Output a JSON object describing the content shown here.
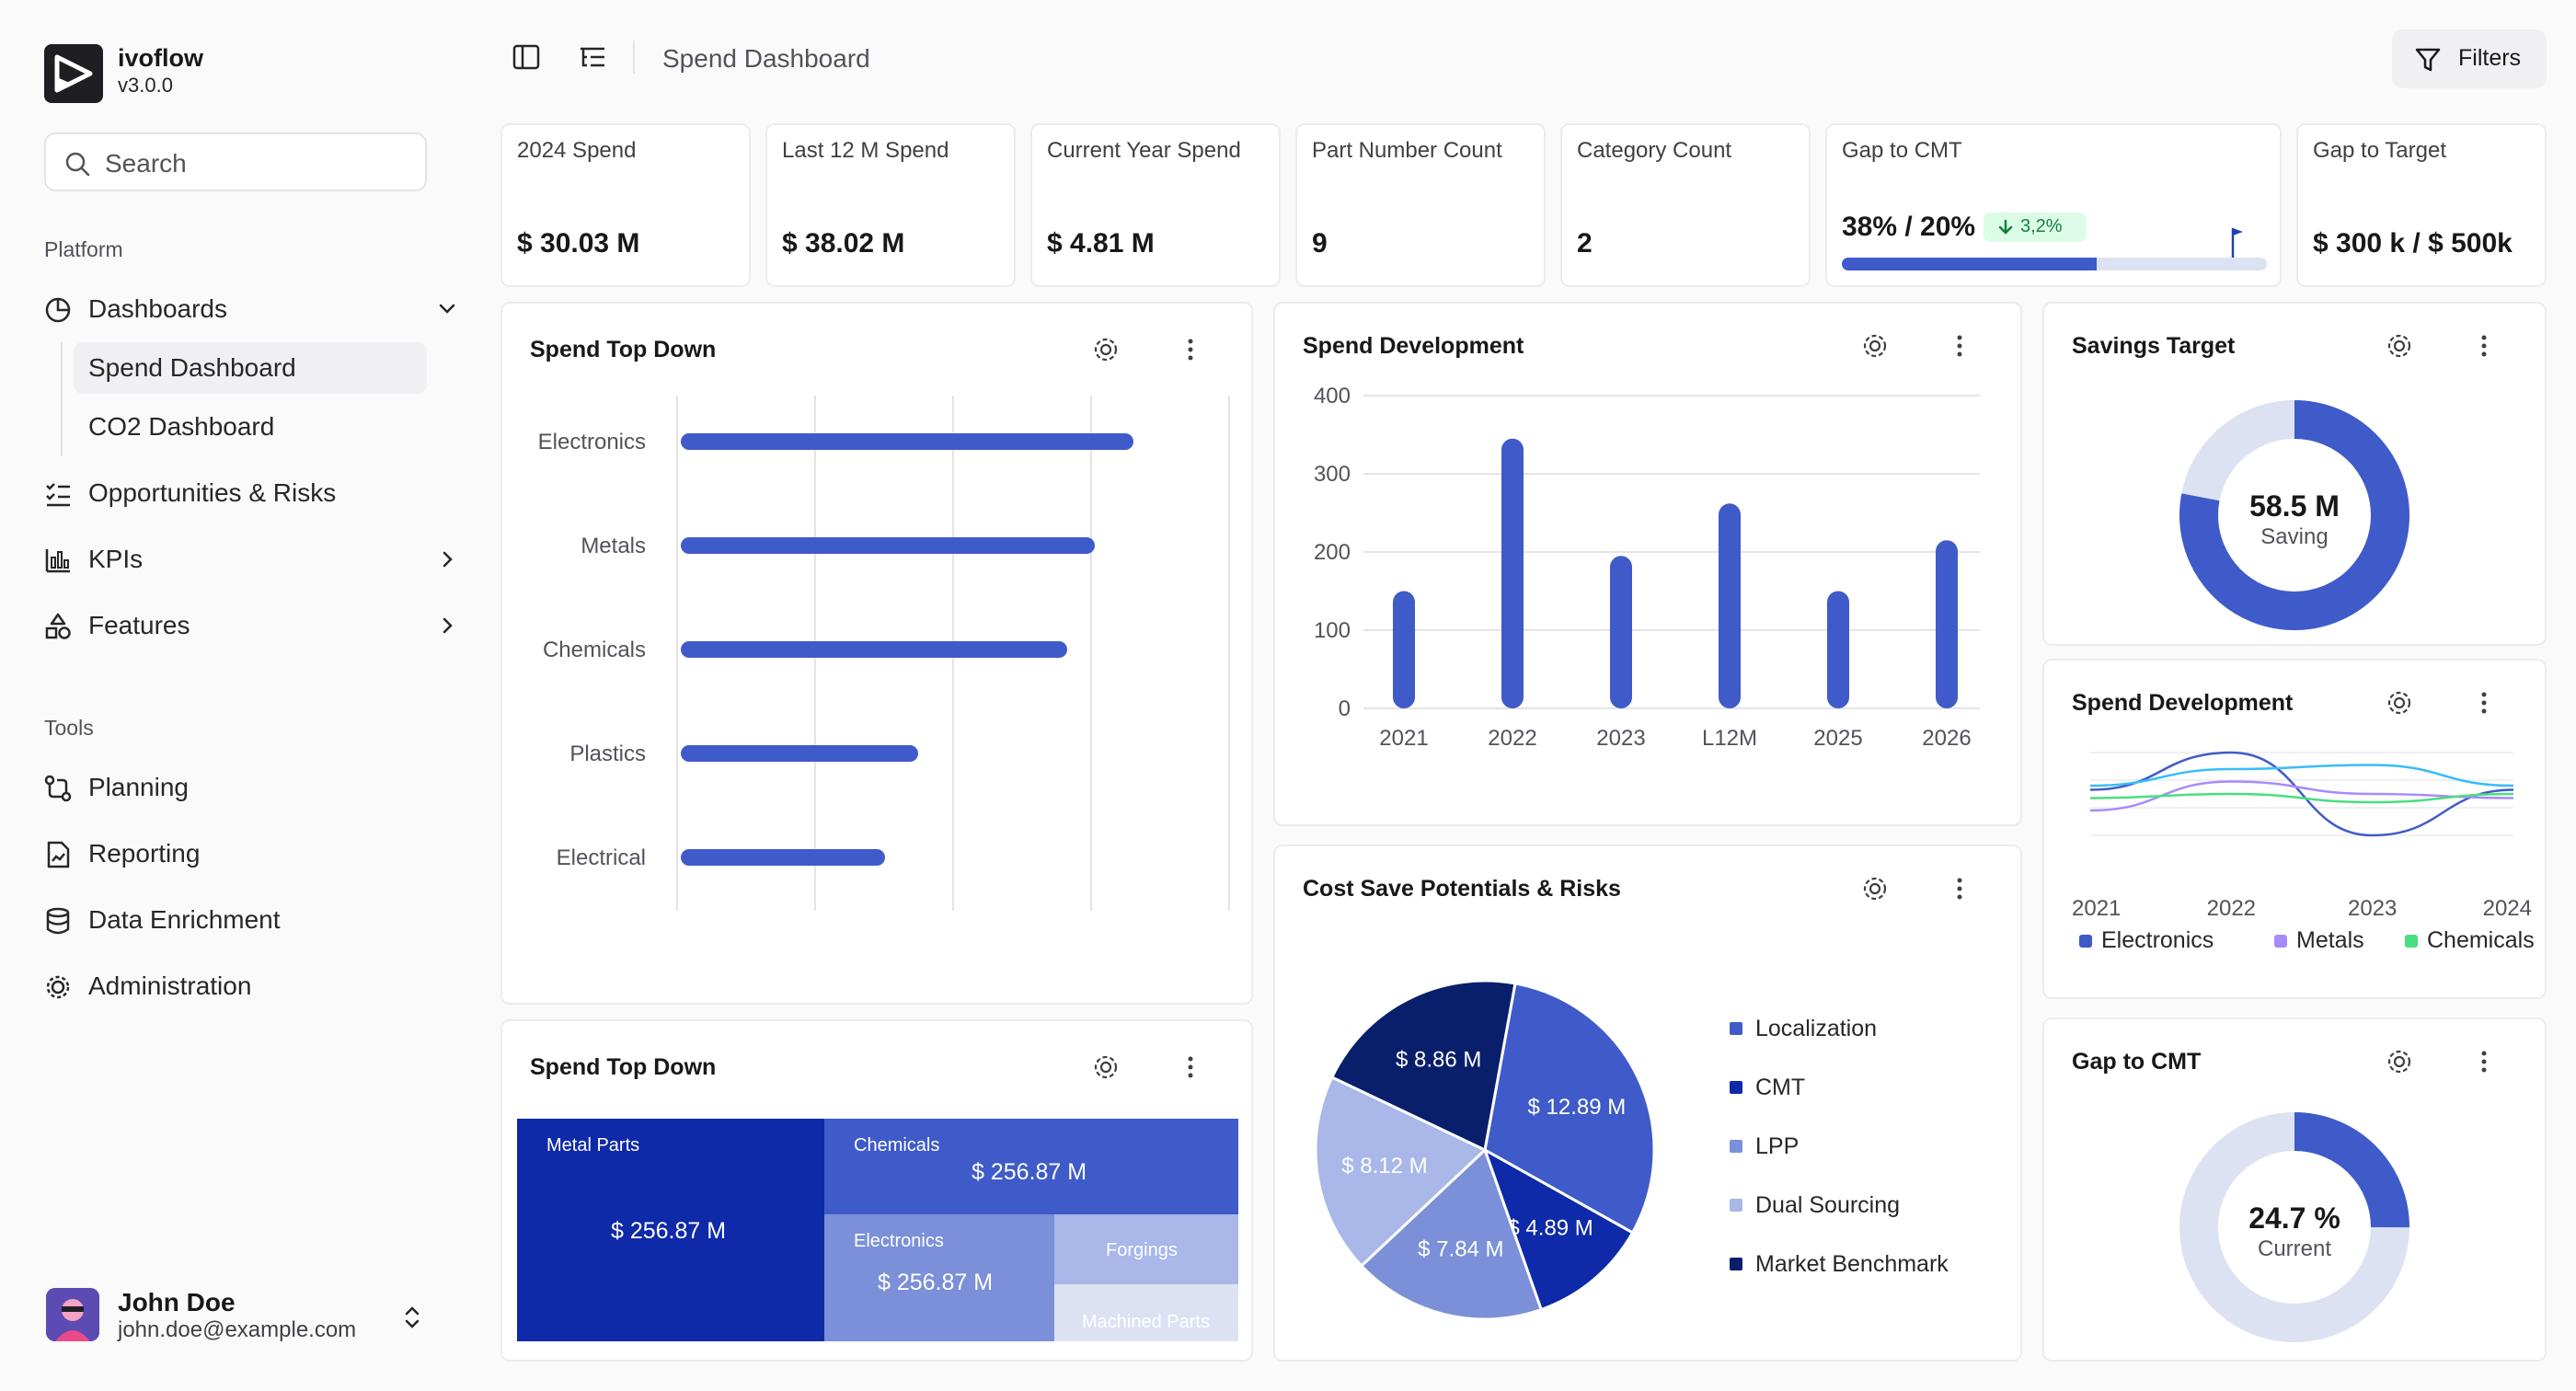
{
  "app": {
    "name": "ivoflow",
    "version": "v3.0.0"
  },
  "search": {
    "placeholder": "Search"
  },
  "sidebar": {
    "platform_label": "Platform",
    "tools_label": "Tools",
    "items": [
      {
        "label": "Dashboards",
        "icon": "pie-chart-icon"
      },
      {
        "label": "Opportunities & Risks",
        "icon": "list-check-icon"
      },
      {
        "label": "KPIs",
        "icon": "bar-chart-icon"
      },
      {
        "label": "Features",
        "icon": "shapes-icon"
      }
    ],
    "dashboard_subitems": [
      "Spend Dashboard",
      "CO2 Dashboard"
    ],
    "tools": [
      {
        "label": "Planning",
        "icon": "route-icon"
      },
      {
        "label": "Reporting",
        "icon": "file-chart-icon"
      },
      {
        "label": "Data Enrichment",
        "icon": "database-icon"
      },
      {
        "label": "Administration",
        "icon": "cog-icon"
      }
    ]
  },
  "user": {
    "name": "John Doe",
    "email": "john.doe@example.com"
  },
  "header": {
    "breadcrumb": "Spend Dashboard",
    "filters_label": "Filters"
  },
  "kpis": [
    {
      "title": "2024 Spend",
      "value": "$ 30.03 M"
    },
    {
      "title": "Last 12 M Spend",
      "value": "$ 38.02 M"
    },
    {
      "title": "Current Year Spend",
      "value": "$ 4.81 M"
    },
    {
      "title": "Part Number Count",
      "value": "9"
    },
    {
      "title": "Category Count",
      "value": "2"
    },
    {
      "title": "Gap to CMT",
      "value": "38% / 20%",
      "badge": "3,2%",
      "progress": 0.6
    },
    {
      "title": "Gap to Target",
      "value": "$ 300 k / $ 500k"
    }
  ],
  "colors": {
    "primary": "#3f5bc9",
    "dark": "#0a1f6b",
    "navy": "#0f2aa8",
    "light": "#dde2f3"
  },
  "cards": {
    "spend_top_down": "Spend Top Down",
    "spend_dev": "Spend Development",
    "savings_target": "Savings Target",
    "spend_dev_small": "Spend Development",
    "cost_save": "Cost Save Potentials & Risks",
    "spend_top_down_2": "Spend Top Down",
    "gap_to_cmt": "Gap to CMT"
  },
  "chart_data": [
    {
      "type": "bar",
      "orientation": "horizontal",
      "title": "Spend Top Down",
      "categories": [
        "Electronics",
        "Metals",
        "Chemicals",
        "Plastics",
        "Electrical"
      ],
      "values": [
        82,
        75,
        70,
        43,
        37
      ],
      "xlim": [
        0,
        100
      ],
      "grid": true
    },
    {
      "type": "bar",
      "title": "Spend Development",
      "categories": [
        "2021",
        "2022",
        "2023",
        "L12M",
        "2025",
        "2026"
      ],
      "values": [
        150,
        345,
        195,
        262,
        150,
        215
      ],
      "ylim": [
        0,
        400
      ],
      "yticks": [
        0,
        100,
        200,
        300,
        400
      ],
      "grid": true
    },
    {
      "type": "pie",
      "title": "Savings Target",
      "donut": true,
      "center_value": "58.5 M",
      "center_label": "Saving",
      "filled_fraction": 0.78
    },
    {
      "type": "line",
      "title": "Spend Development",
      "x": [
        "2021",
        "2022",
        "2023",
        "2024"
      ],
      "series": [
        {
          "name": "Electronics",
          "color": "#3f5bc9",
          "values": [
            0.55,
            1.0,
            0.0,
            0.55
          ]
        },
        {
          "name": "Metals",
          "color": "#a78bfa",
          "values": [
            0.3,
            0.65,
            0.5,
            0.45
          ]
        },
        {
          "name": "Chemicals",
          "color": "#4ade80",
          "values": [
            0.45,
            0.5,
            0.4,
            0.5
          ]
        },
        {
          "name": "",
          "color": "#38bdf8",
          "values": [
            0.6,
            0.8,
            0.85,
            0.6
          ]
        }
      ],
      "legend_position": "bottom"
    },
    {
      "type": "pie",
      "title": "Cost Save Potentials & Risks",
      "slices": [
        {
          "label": "$ 12.89 M",
          "value": 12.89,
          "color": "#3f5bc9"
        },
        {
          "label": "$ 4.89 M",
          "value": 4.89,
          "color": "#0f2aa8"
        },
        {
          "label": "$ 7.84 M",
          "value": 7.84,
          "color": "#7b90d8"
        },
        {
          "label": "$ 8.12 M",
          "value": 8.12,
          "color": "#a9b7e9"
        },
        {
          "label": "$ 8.86 M",
          "value": 8.86,
          "color": "#0a1f6b"
        }
      ],
      "legend": [
        {
          "name": "Localization",
          "color": "#3f5bc9"
        },
        {
          "name": "CMT",
          "color": "#0f2aa8"
        },
        {
          "name": "LPP",
          "color": "#7b90d8"
        },
        {
          "name": "Dual Sourcing",
          "color": "#a9b7e9"
        },
        {
          "name": "Market Benchmark",
          "color": "#0a1f6b"
        }
      ],
      "legend_position": "right"
    },
    {
      "type": "treemap",
      "title": "Spend Top Down",
      "cells": [
        {
          "label": "Metal Parts",
          "value": "$ 256.87 M"
        },
        {
          "label": "Chemicals",
          "value": "$ 256.87 M"
        },
        {
          "label": "Electronics",
          "value": "$ 256.87 M"
        },
        {
          "label": "Forgings",
          "value": ""
        },
        {
          "label": "Machined Parts",
          "value": ""
        }
      ]
    },
    {
      "type": "pie",
      "title": "Gap to CMT",
      "donut": true,
      "center_value": "24.7 %",
      "center_label": "Current",
      "filled_fraction": 0.25
    }
  ]
}
